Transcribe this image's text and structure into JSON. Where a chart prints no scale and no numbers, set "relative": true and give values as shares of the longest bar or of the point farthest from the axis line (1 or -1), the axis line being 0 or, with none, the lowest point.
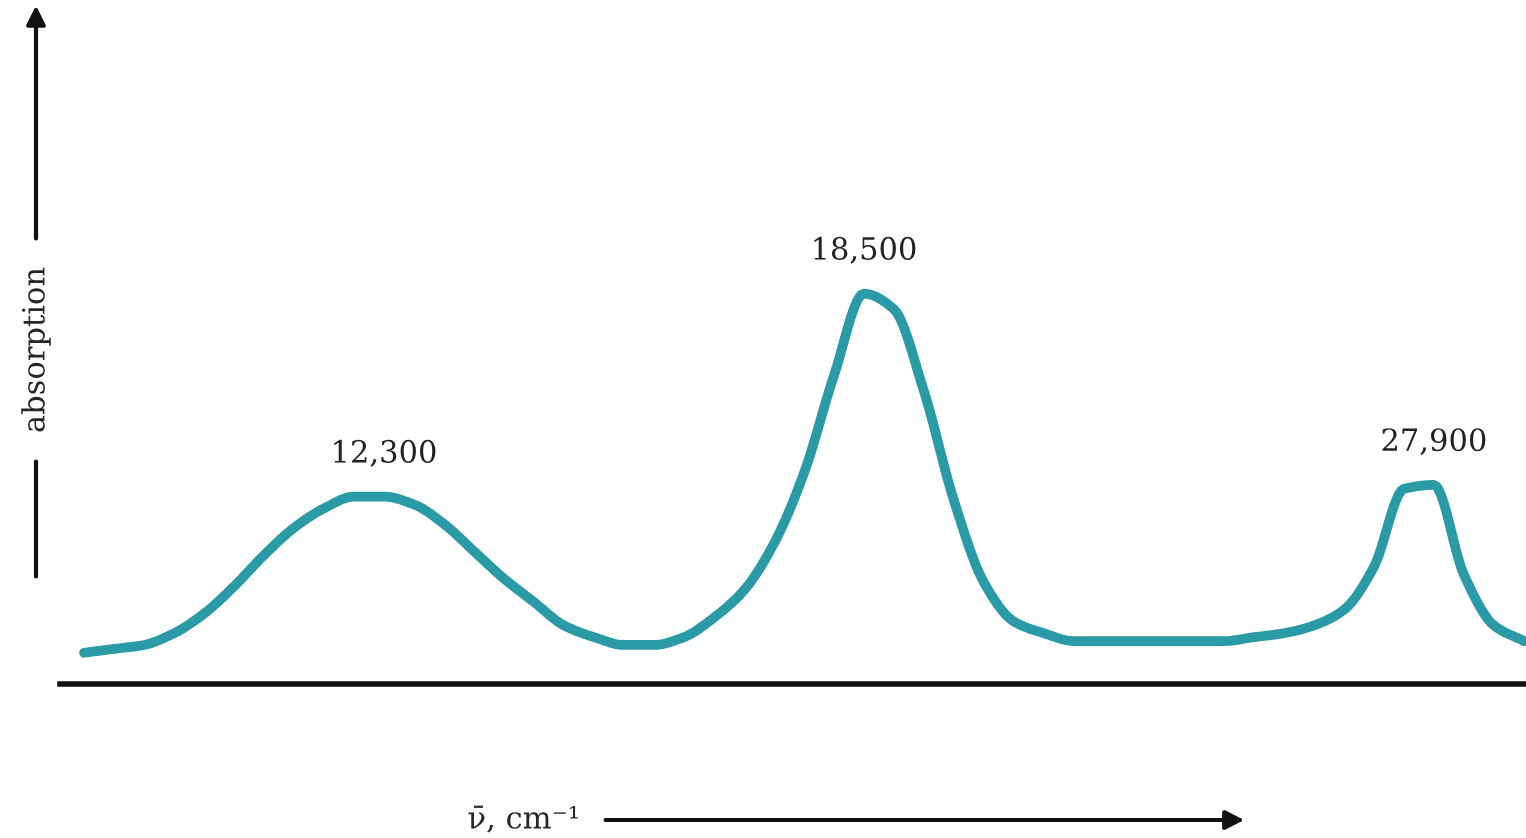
{
  "chart_data": {
    "type": "line",
    "relative": true,
    "xlabel": "ν̄, cm⁻¹",
    "ylabel": "absorption",
    "categories": [
      null,
      null,
      null,
      null,
      null,
      null,
      null,
      null,
      null,
      null,
      null,
      null,
      null,
      null,
      null,
      null,
      null,
      null,
      null,
      null,
      null,
      null,
      null,
      null,
      null,
      null,
      null,
      null,
      null,
      null,
      null,
      null,
      null,
      null,
      null,
      null,
      null,
      null,
      null,
      null,
      null,
      null,
      null,
      null,
      null,
      null,
      null,
      null,
      null
    ],
    "series": [
      {
        "color": "#2a9aa6",
        "values": [
          0.08,
          0.09,
          0.1,
          0.13,
          0.18,
          0.25,
          0.33,
          0.4,
          0.45,
          0.48,
          0.48,
          0.46,
          0.41,
          0.34,
          0.27,
          0.21,
          0.15,
          0.12,
          0.1,
          0.1,
          0.12,
          0.17,
          0.24,
          0.36,
          0.54,
          0.79,
          1.0,
          0.96,
          0.75,
          0.47,
          0.26,
          0.16,
          0.13,
          0.11,
          0.11,
          0.11,
          0.11,
          0.11,
          0.11,
          0.12,
          0.13,
          0.15,
          0.19,
          0.3,
          0.5,
          0.51,
          0.28,
          0.15,
          0.11
        ]
      }
    ],
    "annotations": [
      "12,300",
      "18,500",
      "27,900"
    ],
    "legend": false,
    "marker": "none",
    "line_style": "solid"
  }
}
